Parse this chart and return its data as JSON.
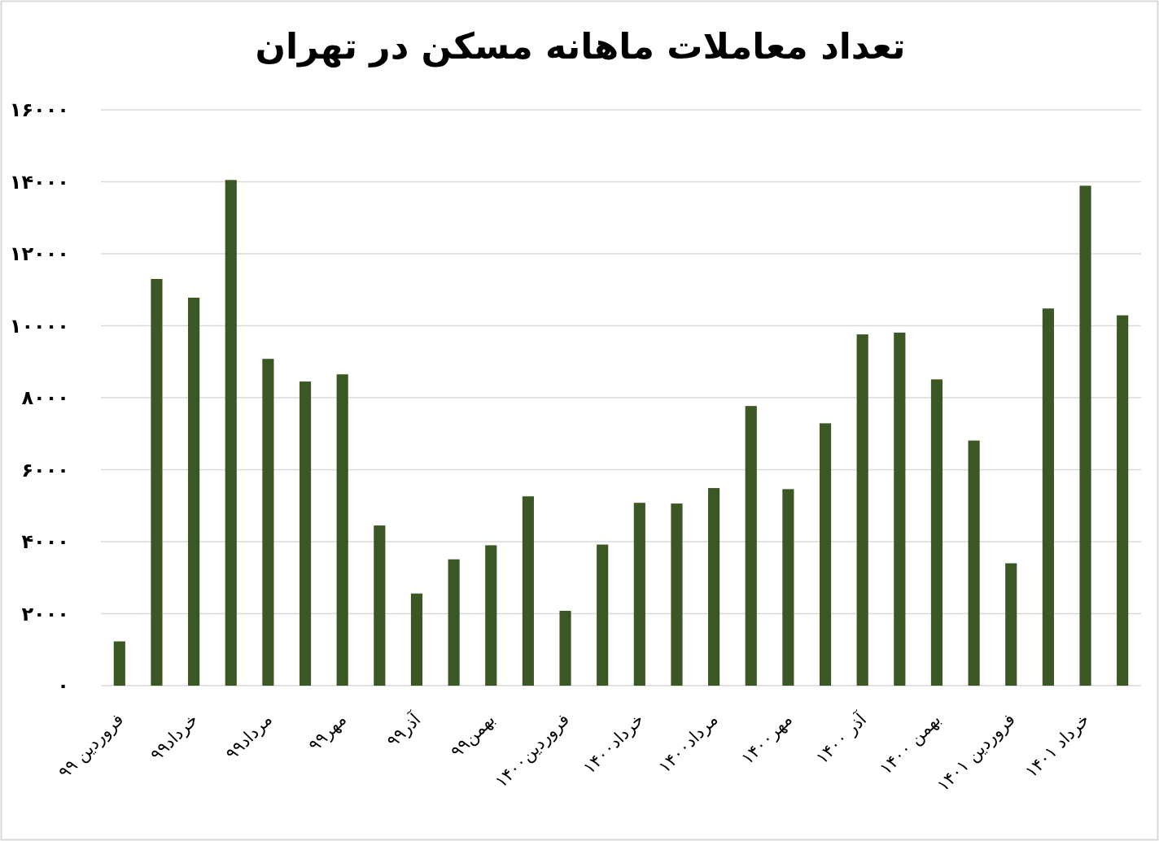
{
  "chart_data": {
    "type": "bar",
    "title": "تعداد معاملات ماهانه مسکن در تهران",
    "categories": [
      "فروردین ۹۹",
      null,
      "خرداد۹۹",
      null,
      "مرداد۹۹",
      null,
      "مهر۹۹",
      null,
      "آذر۹۹",
      null,
      "بهمن۹۹",
      null,
      "فروردین۱۴۰۰",
      null,
      "خرداد۱۴۰۰",
      null,
      "مرداد۱۴۰۰",
      null,
      "مهر۱۴۰۰",
      null,
      "آذر ۱۴۰۰",
      null,
      "بهمن ۱۴۰۰",
      null,
      "فروردین ۱۴۰۱",
      null,
      "خرداد ۱۴۰۱",
      null
    ],
    "values": [
      1230,
      11300,
      10780,
      14050,
      9080,
      8450,
      8650,
      4450,
      2560,
      3510,
      3900,
      5260,
      2080,
      3920,
      5080,
      5060,
      5490,
      7770,
      5460,
      7290,
      9760,
      9810,
      8510,
      6810,
      3400,
      10480,
      13890,
      10290
    ],
    "color": "#3b5724",
    "ylim": [
      0,
      16000
    ],
    "yticks": [
      {
        "value": 0,
        "label": "۰"
      },
      {
        "value": 2000,
        "label": "۲۰۰۰"
      },
      {
        "value": 4000,
        "label": "۴۰۰۰"
      },
      {
        "value": 6000,
        "label": "۶۰۰۰"
      },
      {
        "value": 8000,
        "label": "۸۰۰۰"
      },
      {
        "value": 10000,
        "label": "۱۰۰۰۰"
      },
      {
        "value": 12000,
        "label": "۱۲۰۰۰"
      },
      {
        "value": 14000,
        "label": "۱۴۰۰۰"
      },
      {
        "value": 16000,
        "label": "۱۶۰۰۰"
      }
    ],
    "grid": "y"
  }
}
